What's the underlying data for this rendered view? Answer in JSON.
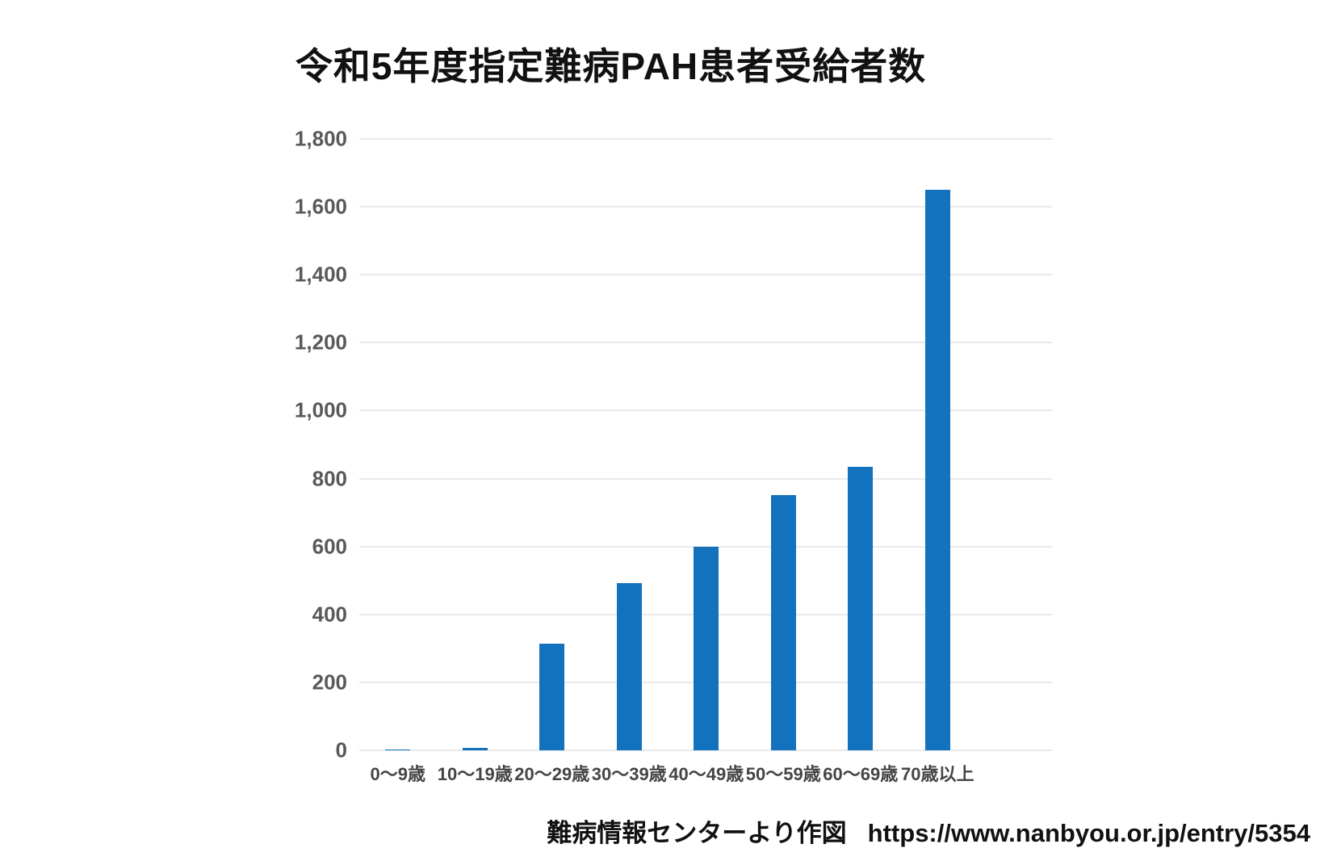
{
  "chart_data": {
    "type": "bar",
    "title": "令和5年度指定難病PAH患者受給者数",
    "categories": [
      "0〜9歳",
      "10〜19歳",
      "20〜29歳",
      "30〜39歳",
      "40〜49歳",
      "50〜59歳",
      "60〜69歳",
      "70歳以上"
    ],
    "values": [
      3,
      8,
      315,
      492,
      600,
      752,
      835,
      1650
    ],
    "xlabel": "",
    "ylabel": "",
    "ylim": [
      0,
      1800
    ],
    "yticks": [
      0,
      200,
      400,
      600,
      800,
      1000,
      1200,
      1400,
      1600,
      1800
    ],
    "ytick_labels": [
      "0",
      "200",
      "400",
      "600",
      "800",
      "1,000",
      "1,200",
      "1,400",
      "1,600",
      "1,800"
    ],
    "grid": true,
    "legend": "none",
    "bar_color": "#1272bd",
    "gridline_color": "#e9e9e9"
  },
  "footer": {
    "source": "難病情報センターより作図",
    "url": "https://www.nanbyou.or.jp/entry/5354"
  }
}
